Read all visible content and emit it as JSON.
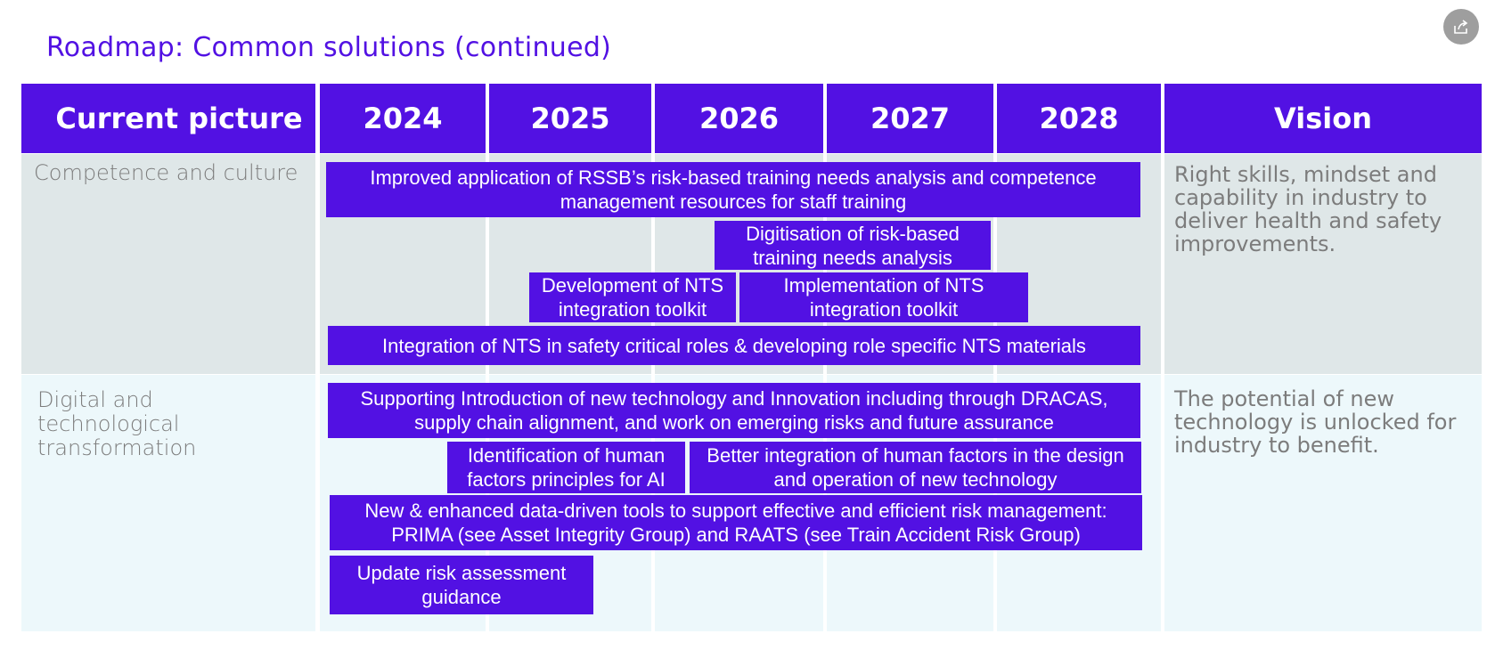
{
  "title": "Roadmap: Common solutions (continued)",
  "share_icon": "share-icon",
  "colors": {
    "accent": "#5211e3",
    "competence_bg": "#dfe7e8",
    "digital_bg": "#edf8fb",
    "muted_text": "#7c7c7c"
  },
  "headers": {
    "current": "Current picture",
    "years": [
      "2024",
      "2025",
      "2026",
      "2027",
      "2028"
    ],
    "vision": "Vision"
  },
  "rows": [
    {
      "label": "Competence and culture",
      "vision": "Right skills, mindset and capability in industry to deliver health and safety improvements.",
      "bars": [
        "Improved application of RSSB’s risk-based training needs analysis and competence management resources for staff training",
        "Digitisation of risk-based training needs analysis",
        "Development of NTS integration toolkit",
        "Implementation of NTS integration toolkit",
        "Integration of NTS in safety critical roles & developing role specific NTS materials"
      ]
    },
    {
      "label": "Digital and technological transformation",
      "vision": "The potential of new technology is unlocked for industry to benefit.",
      "bars": [
        "Supporting Introduction of new technology and Innovation including through DRACAS, supply chain alignment, and work on emerging risks and future assurance",
        "Identification of human factors principles for AI",
        "Better integration of human factors in the design and operation of new technology",
        "New & enhanced data-driven tools to support effective and efficient risk management: PRIMA (see Asset Integrity Group) and RAATS (see Train Accident Risk Group)",
        "Update risk assessment guidance"
      ]
    }
  ]
}
